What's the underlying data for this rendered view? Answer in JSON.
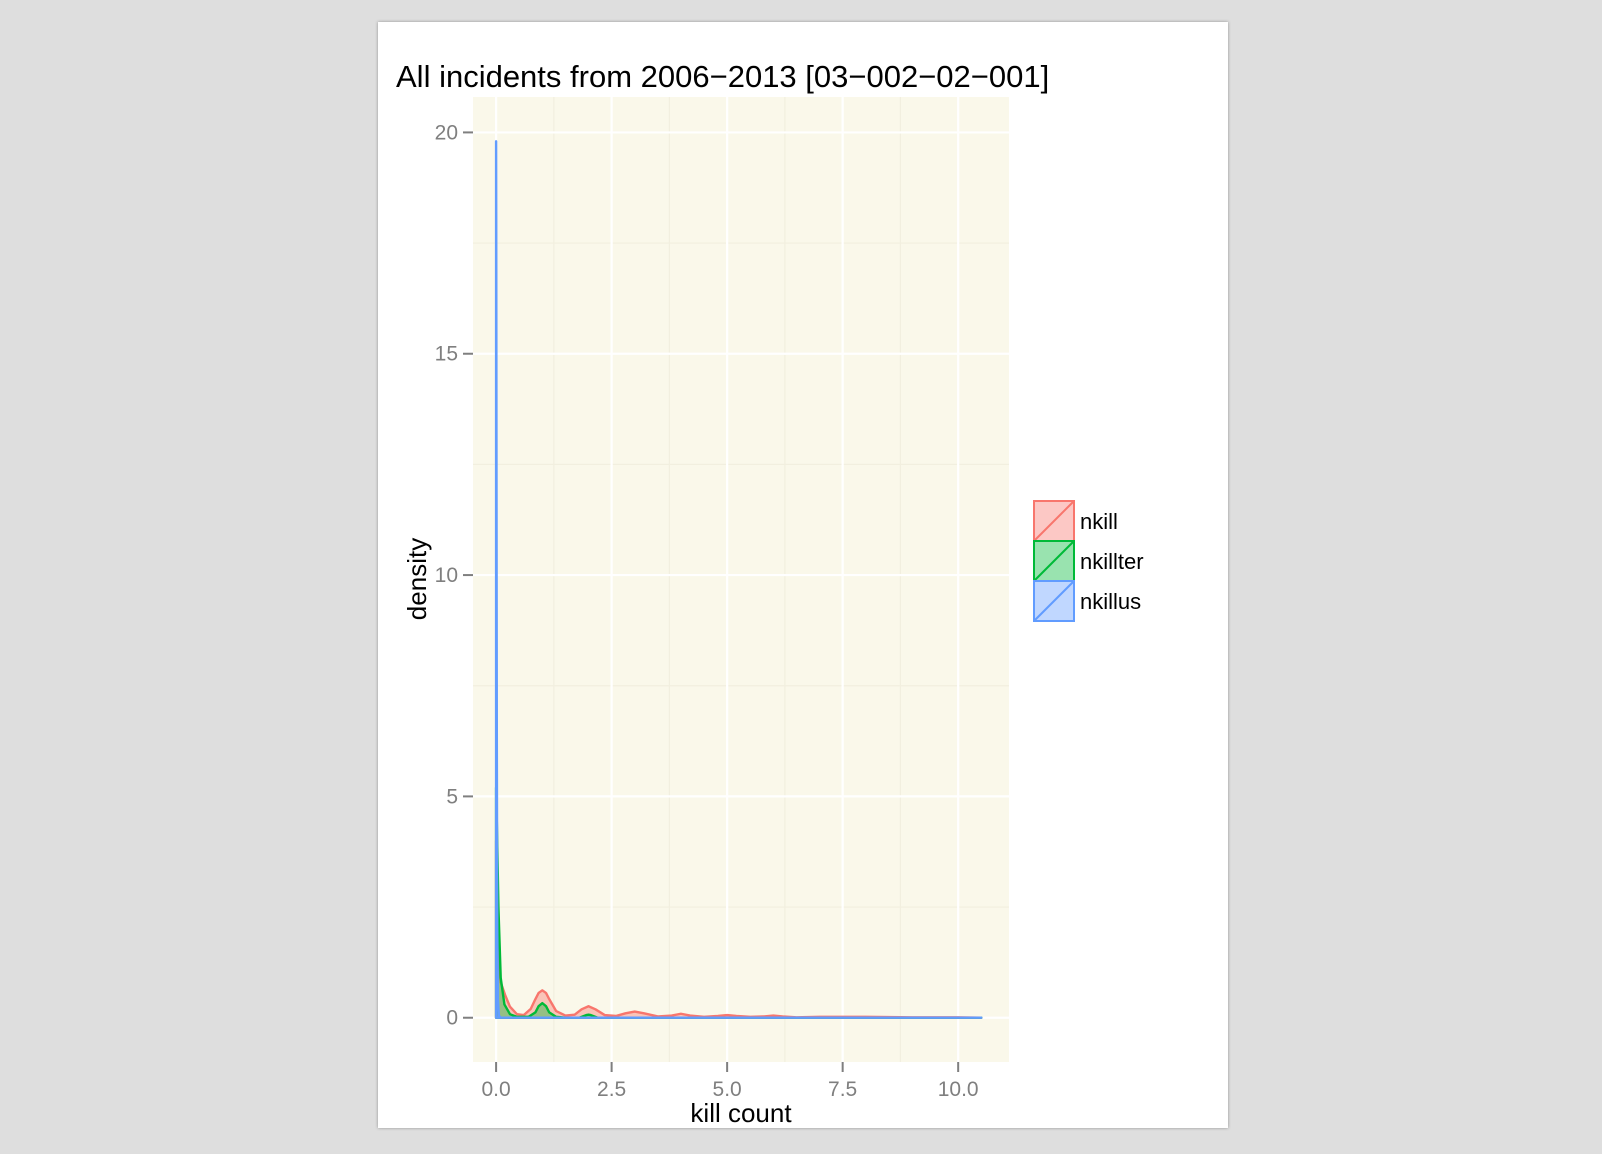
{
  "chart_data": {
    "type": "area",
    "title": "All incidents from 2006−2013 [03−002−02−001]",
    "xlabel": "kill count",
    "ylabel": "density",
    "xlim": [
      -0.5,
      11.1
    ],
    "ylim": [
      -1,
      20.8
    ],
    "x_ticks": [
      0.0,
      2.5,
      5.0,
      7.5,
      10.0
    ],
    "x_tick_labels": [
      "0.0",
      "2.5",
      "5.0",
      "7.5",
      "10.0"
    ],
    "y_ticks": [
      0,
      5,
      10,
      15,
      20
    ],
    "y_tick_labels": [
      "0",
      "5",
      "10",
      "15",
      "20"
    ],
    "grid": true,
    "panel_background": "#faf8ea",
    "legend_position": "right",
    "series": [
      {
        "name": "nkill",
        "color": "#f8766d",
        "fill": "rgba(248,118,109,0.4)",
        "x": [
          0,
          0.02,
          0.05,
          0.1,
          0.2,
          0.3,
          0.45,
          0.6,
          0.75,
          0.85,
          0.92,
          1.0,
          1.08,
          1.15,
          1.3,
          1.5,
          1.7,
          1.85,
          2.0,
          2.15,
          2.35,
          2.6,
          2.8,
          3.0,
          3.2,
          3.5,
          3.8,
          4.0,
          4.2,
          4.5,
          4.8,
          5.0,
          5.2,
          5.5,
          5.8,
          6.0,
          6.2,
          6.5,
          7.0,
          8.0,
          9.0,
          10.0,
          10.5
        ],
        "y": [
          4.0,
          3.0,
          1.5,
          0.8,
          0.5,
          0.25,
          0.08,
          0.06,
          0.2,
          0.42,
          0.56,
          0.62,
          0.56,
          0.42,
          0.15,
          0.05,
          0.07,
          0.19,
          0.26,
          0.19,
          0.06,
          0.04,
          0.1,
          0.14,
          0.1,
          0.03,
          0.05,
          0.09,
          0.05,
          0.02,
          0.04,
          0.06,
          0.04,
          0.02,
          0.03,
          0.05,
          0.03,
          0.01,
          0.02,
          0.02,
          0.01,
          0.01,
          0.0
        ]
      },
      {
        "name": "nkillter",
        "color": "#00ba38",
        "fill": "rgba(0,186,56,0.4)",
        "x": [
          0,
          0.02,
          0.05,
          0.1,
          0.18,
          0.3,
          0.45,
          0.7,
          0.85,
          0.92,
          1.0,
          1.08,
          1.15,
          1.3,
          1.5,
          1.8,
          1.95,
          2.0,
          2.05,
          2.2,
          2.5,
          3.0,
          4.0,
          6.0,
          8.0,
          10.0,
          10.5
        ],
        "y": [
          5.2,
          4.2,
          2.5,
          0.9,
          0.3,
          0.08,
          0.02,
          0.02,
          0.12,
          0.26,
          0.33,
          0.26,
          0.12,
          0.02,
          0.0,
          0.0,
          0.06,
          0.07,
          0.06,
          0.0,
          0.0,
          0.0,
          0.0,
          0.0,
          0.0,
          0.0,
          0.0
        ]
      },
      {
        "name": "nkillus",
        "color": "#619cff",
        "fill": "rgba(97,156,255,0.4)",
        "x": [
          0,
          0.003,
          0.008,
          0.015,
          0.025,
          0.04,
          0.06,
          0.1,
          0.5,
          1.0,
          2.0,
          5.0,
          10.0,
          10.5
        ],
        "y": [
          19.8,
          18.0,
          13.0,
          6.5,
          2.0,
          0.4,
          0.05,
          0.0,
          0.0,
          0.0,
          0.0,
          0.0,
          0.0,
          0.0
        ]
      }
    ]
  }
}
